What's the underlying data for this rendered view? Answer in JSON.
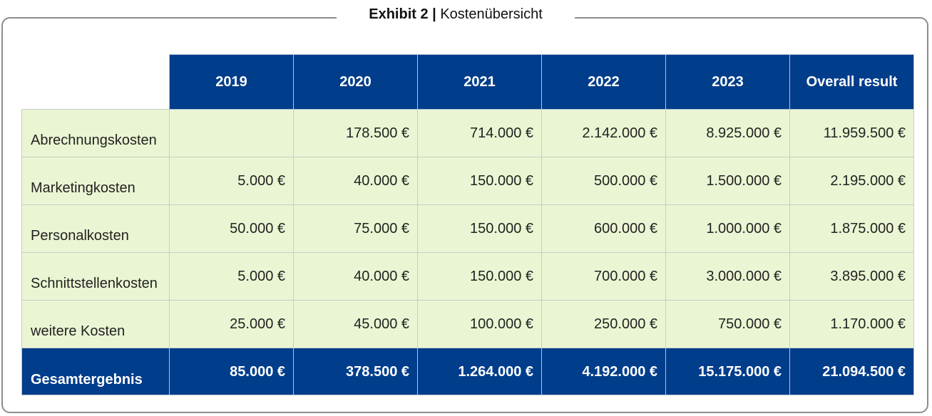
{
  "title": {
    "bold": "Exhibit 2",
    "separator": "|",
    "text": "Kostenübersicht"
  },
  "table": {
    "columns": [
      "2019",
      "2020",
      "2021",
      "2022",
      "2023",
      "Overall result"
    ],
    "rows": [
      {
        "label": "Abrechnungskosten",
        "values": [
          "",
          "178.500 €",
          "714.000 €",
          "2.142.000 €",
          "8.925.000 €",
          "11.959.500 €"
        ]
      },
      {
        "label": "Marketingkosten",
        "values": [
          "5.000 €",
          "40.000 €",
          "150.000 €",
          "500.000 €",
          "1.500.000 €",
          "2.195.000 €"
        ]
      },
      {
        "label": "Personalkosten",
        "values": [
          "50.000 €",
          "75.000 €",
          "150.000 €",
          "600.000 €",
          "1.000.000 €",
          "1.875.000 €"
        ]
      },
      {
        "label": "Schnittstellenkosten",
        "values": [
          "5.000 €",
          "40.000 €",
          "150.000 €",
          "700.000 €",
          "3.000.000 €",
          "3.895.000 €"
        ]
      },
      {
        "label": "weitere Kosten",
        "values": [
          "25.000 €",
          "45.000 €",
          "100.000 €",
          "250.000 €",
          "750.000 €",
          "1.170.000 €"
        ]
      }
    ],
    "total": {
      "label": "Gesamtergebnis",
      "values": [
        "85.000 €",
        "378.500 €",
        "1.264.000 €",
        "4.192.000 €",
        "15.175.000 €",
        "21.094.500 €"
      ]
    }
  },
  "colors": {
    "header_bg": "#003d8b",
    "body_bg": "#eaf6d3",
    "frame": "#8c8c8c"
  }
}
